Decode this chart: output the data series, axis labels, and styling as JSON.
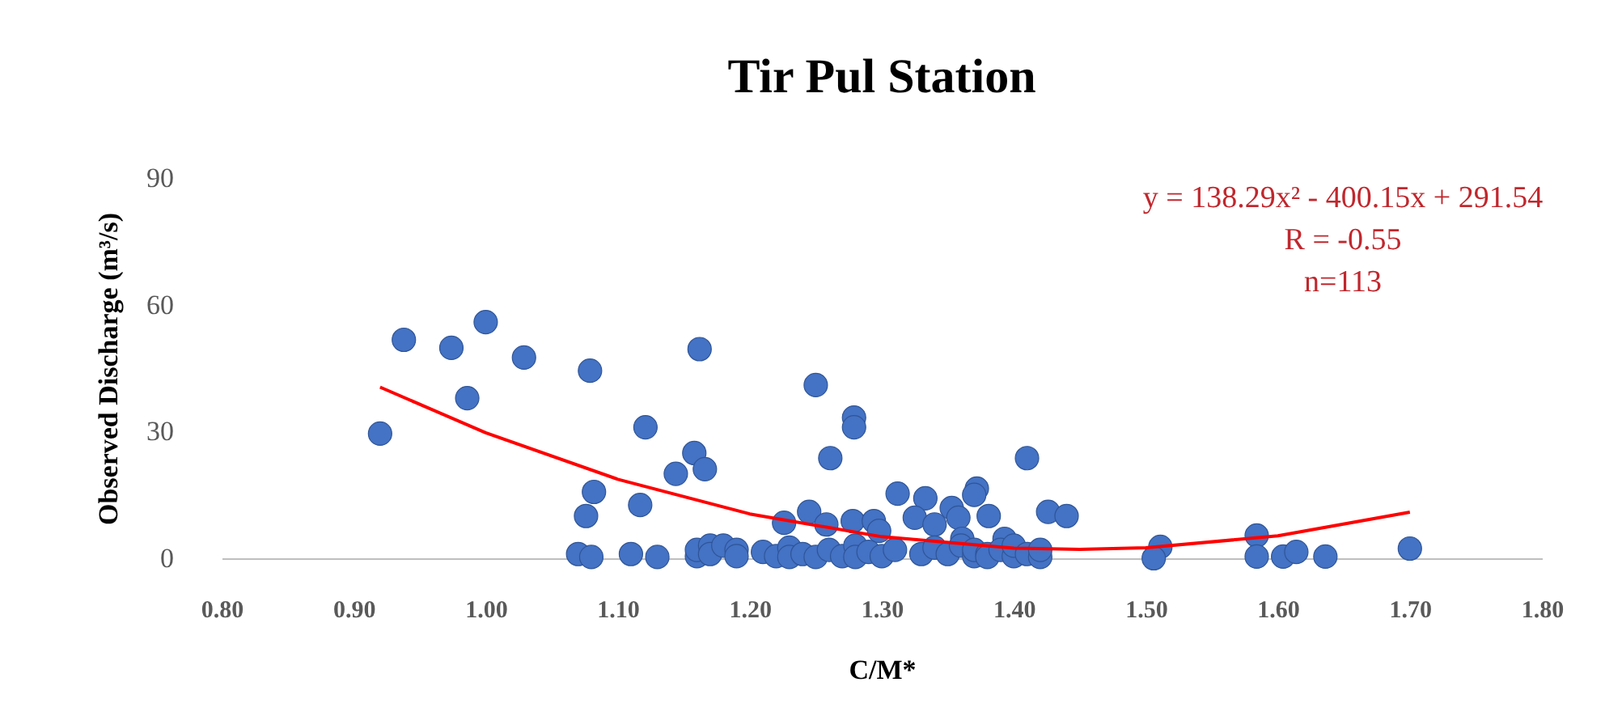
{
  "chart_data": {
    "type": "scatter",
    "title": "Tir Pul Station",
    "xlabel": "C/M*",
    "ylabel": "Observed Discharge (m³/s)",
    "xlim": [
      0.8,
      1.8
    ],
    "xticks": [
      {
        "value": 0.8,
        "label": "0.80"
      },
      {
        "value": 0.9,
        "label": "0.90"
      },
      {
        "value": 1.0,
        "label": "1.00"
      },
      {
        "value": 1.1,
        "label": "1.10"
      },
      {
        "value": 1.2,
        "label": "1.20"
      },
      {
        "value": 1.3,
        "label": "1.30"
      },
      {
        "value": 1.4,
        "label": "1.40"
      },
      {
        "value": 1.5,
        "label": "1.50"
      },
      {
        "value": 1.6,
        "label": "1.60"
      },
      {
        "value": 1.7,
        "label": "1.70"
      },
      {
        "value": 1.8,
        "label": "1.80"
      }
    ],
    "ylim": [
      0,
      90
    ],
    "yticks": [
      0,
      30,
      60,
      90
    ],
    "grid": false,
    "annotations": [
      "y = 138.29x² - 400.15x + 291.54",
      "R = -0.55",
      "n=113"
    ],
    "series": [
      {
        "type": "scatter",
        "marker": "circle",
        "color": "#4472c4",
        "x": [
          0.92,
          0.938,
          0.974,
          0.986,
          1.0,
          1.029,
          1.079,
          1.082,
          1.076,
          1.117,
          1.121,
          1.144,
          1.158,
          1.162,
          1.166,
          1.25,
          1.279,
          1.279,
          1.261,
          1.41,
          1.312,
          1.333,
          1.372,
          1.37,
          1.245,
          1.226,
          1.258,
          1.278,
          1.294,
          1.298,
          1.325,
          1.353,
          1.358,
          1.381,
          1.34,
          1.426,
          1.44,
          1.361,
          1.393,
          1.07,
          1.08,
          1.11,
          1.13,
          1.16,
          1.16,
          1.17,
          1.17,
          1.18,
          1.19,
          1.19,
          1.21,
          1.22,
          1.23,
          1.23,
          1.24,
          1.25,
          1.26,
          1.27,
          1.28,
          1.28,
          1.29,
          1.3,
          1.31,
          1.33,
          1.34,
          1.35,
          1.36,
          1.37,
          1.37,
          1.38,
          1.38,
          1.39,
          1.4,
          1.4,
          1.41,
          1.42,
          1.42,
          1.511,
          1.506,
          1.584,
          1.584,
          1.604,
          1.614,
          1.636,
          1.7
        ],
        "values": [
          29.5,
          51.7,
          49.8,
          37.9,
          55.9,
          47.5,
          44.4,
          15.7,
          10,
          12.6,
          31,
          20,
          24.9,
          49.5,
          21.1,
          41,
          33.3,
          31,
          23.7,
          23.7,
          15.3,
          14.2,
          16.5,
          15,
          11,
          8.4,
          8,
          8.8,
          8.8,
          6.5,
          9.6,
          11.9,
          9.6,
          10,
          8,
          11,
          10,
          4.6,
          4.6,
          1,
          0.3,
          1,
          0.3,
          0.5,
          2,
          3,
          1,
          3,
          2,
          0.5,
          1.5,
          0.5,
          2.5,
          0.3,
          1,
          0.3,
          2,
          0.5,
          3,
          0.3,
          1.5,
          0.5,
          2,
          1,
          2.5,
          1,
          3,
          0.5,
          2,
          1,
          0.3,
          2,
          0.5,
          3,
          1,
          0.3,
          2,
          2.7,
          0,
          5.4,
          0.4,
          0.4,
          1.5,
          0.4,
          2.3
        ]
      },
      {
        "type": "line",
        "marker": "none",
        "color": "#ff0000",
        "line_style": "solid",
        "x": [
          0.92,
          1.0,
          1.1,
          1.2,
          1.3,
          1.4,
          1.45,
          1.5,
          1.6,
          1.7
        ],
        "values": [
          40.5,
          29.7,
          18.7,
          10.5,
          5.1,
          2.4,
          2.1,
          2.5,
          5.3,
          10.9
        ]
      }
    ]
  }
}
